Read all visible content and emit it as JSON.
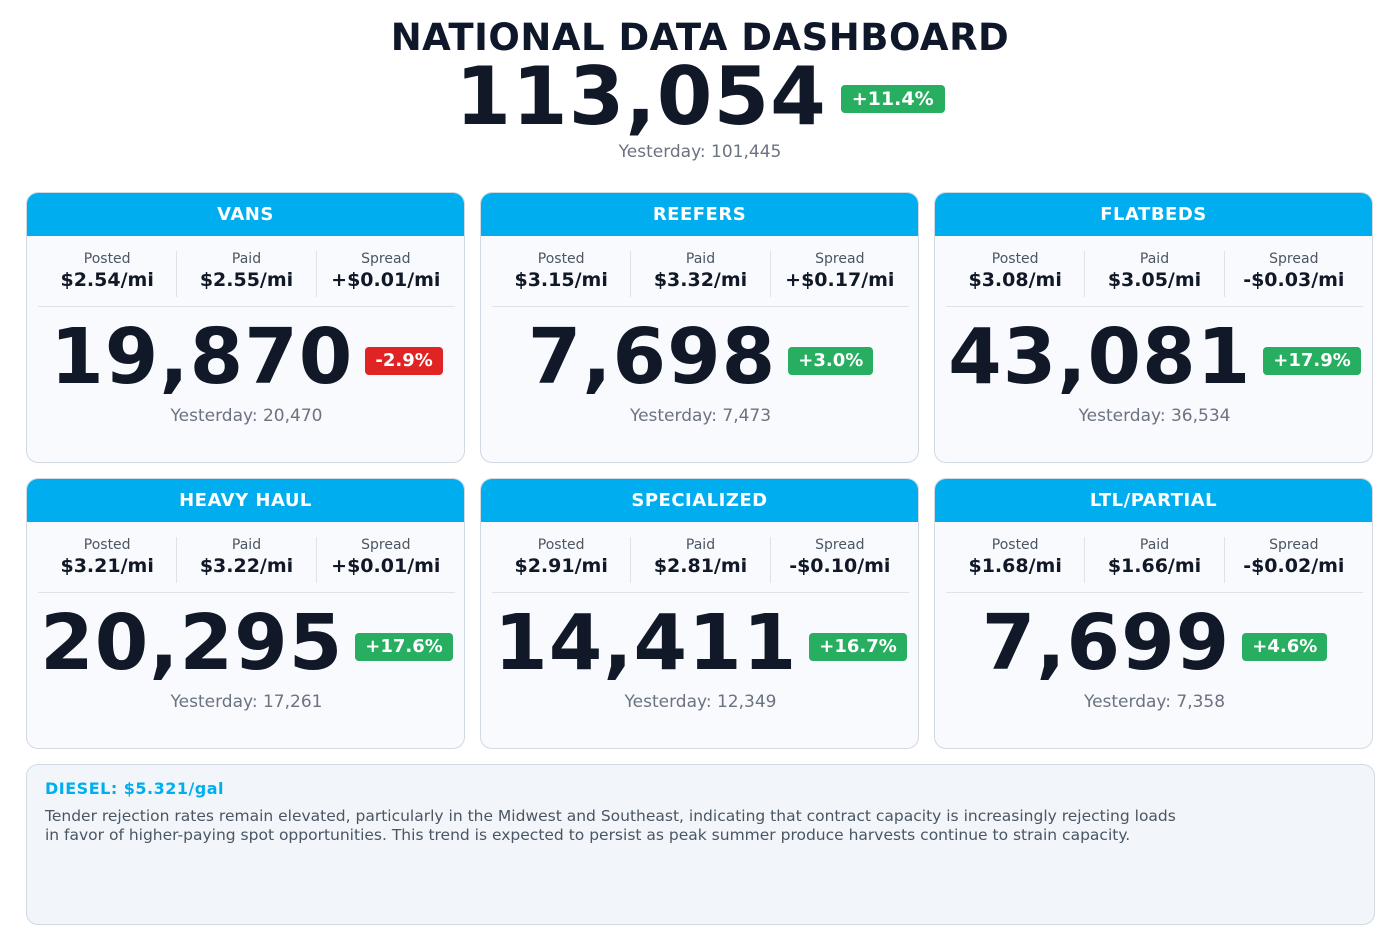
{
  "header": {
    "title": "NATIONAL DATA DASHBOARD",
    "total": "113,054",
    "change": "+11.4%",
    "yesterday": "Yesterday: 101,445"
  },
  "cards": [
    {
      "title": "VANS",
      "posted_label": "Posted",
      "posted": "$2.54/mi",
      "paid_label": "Paid",
      "paid": "$2.55/mi",
      "spread_label": "Spread",
      "spread": "+$0.01/mi",
      "count": "19,870",
      "change": "-2.9%",
      "yesterday": "Yesterday: 20,470"
    },
    {
      "title": "REEFERS",
      "posted_label": "Posted",
      "posted": "$3.15/mi",
      "paid_label": "Paid",
      "paid": "$3.32/mi",
      "spread_label": "Spread",
      "spread": "+$0.17/mi",
      "count": "7,698",
      "change": "+3.0%",
      "yesterday": "Yesterday: 7,473"
    },
    {
      "title": "FLATBEDS",
      "posted_label": "Posted",
      "posted": "$3.08/mi",
      "paid_label": "Paid",
      "paid": "$3.05/mi",
      "spread_label": "Spread",
      "spread": "-$0.03/mi",
      "count": "43,081",
      "change": "+17.9%",
      "yesterday": "Yesterday: 36,534"
    },
    {
      "title": "HEAVY HAUL",
      "posted_label": "Posted",
      "posted": "$3.21/mi",
      "paid_label": "Paid",
      "paid": "$3.22/mi",
      "spread_label": "Spread",
      "spread": "+$0.01/mi",
      "count": "20,295",
      "change": "+17.6%",
      "yesterday": "Yesterday: 17,261"
    },
    {
      "title": "SPECIALIZED",
      "posted_label": "Posted",
      "posted": "$2.91/mi",
      "paid_label": "Paid",
      "paid": "$2.81/mi",
      "spread_label": "Spread",
      "spread": "-$0.10/mi",
      "count": "14,411",
      "change": "+16.7%",
      "yesterday": "Yesterday: 12,349"
    },
    {
      "title": "LTL/PARTIAL",
      "posted_label": "Posted",
      "posted": "$1.68/mi",
      "paid_label": "Paid",
      "paid": "$1.66/mi",
      "spread_label": "Spread",
      "spread": "-$0.02/mi",
      "count": "7,699",
      "change": "+4.6%",
      "yesterday": "Yesterday: 7,358"
    }
  ],
  "notes": {
    "diesel_label": "DIESEL:",
    "diesel_price": "$5.321/gal",
    "text": "Tender rejection rates remain elevated, particularly in the Midwest and Southeast, indicating that contract capacity is increasingly rejecting loads in favor of higher-paying spot opportunities. This trend is expected to persist as peak summer produce harvests continue to strain capacity."
  },
  "colors": {
    "accent": "#00aeef",
    "up": "#27ae60",
    "down": "#e02424",
    "text_dark": "#111827",
    "text_muted": "#6b7280"
  }
}
